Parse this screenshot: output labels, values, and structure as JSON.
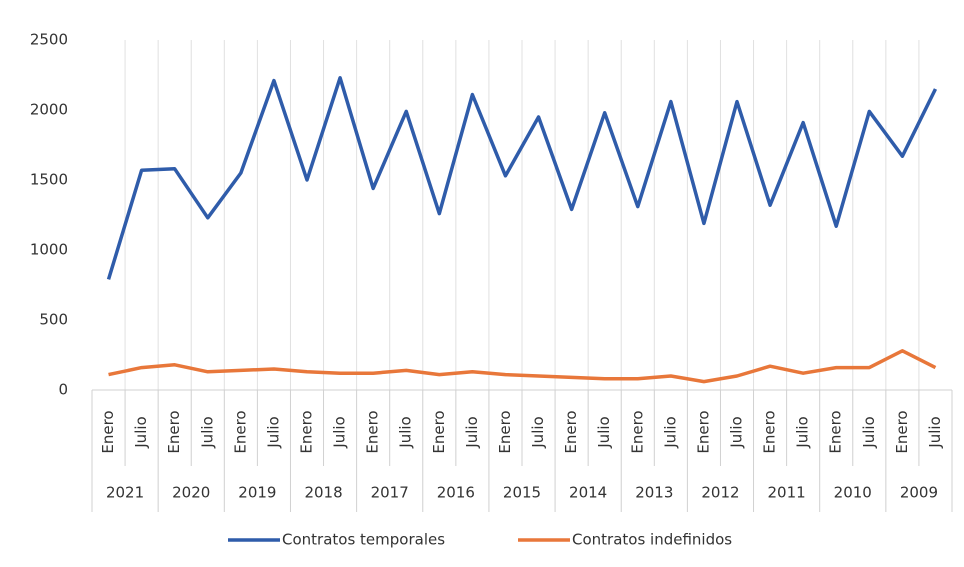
{
  "chart_data": {
    "type": "line",
    "categories": [
      "Enero",
      "Julio",
      "Enero",
      "Julio",
      "Enero",
      "Julio",
      "Enero",
      "Julio",
      "Enero",
      "Julio",
      "Enero",
      "Julio",
      "Enero",
      "Julio",
      "Enero",
      "Julio",
      "Enero",
      "Julio",
      "Enero",
      "Julio",
      "Enero",
      "Julio",
      "Enero",
      "Julio",
      "Enero",
      "Julio"
    ],
    "groups": [
      "2021",
      "2020",
      "2019",
      "2018",
      "2017",
      "2016",
      "2015",
      "2014",
      "2013",
      "2012",
      "2011",
      "2010",
      "2009"
    ],
    "series": [
      {
        "name": "Contratos temporales",
        "color": "#2f5caa",
        "values": [
          790,
          1570,
          1580,
          1230,
          1550,
          2210,
          1500,
          2230,
          1440,
          1990,
          1260,
          2110,
          1530,
          1950,
          1290,
          1980,
          1310,
          2060,
          1190,
          2060,
          1320,
          1910,
          1170,
          1990,
          1670,
          2150
        ]
      },
      {
        "name": "Contratos indefinidos",
        "color": "#e8773a",
        "values": [
          110,
          160,
          180,
          130,
          140,
          150,
          130,
          120,
          120,
          140,
          110,
          130,
          110,
          100,
          90,
          80,
          80,
          100,
          60,
          100,
          170,
          120,
          160,
          160,
          280,
          160
        ]
      }
    ],
    "ylim": [
      0,
      2500
    ],
    "yticks": [
      0,
      500,
      1000,
      1500,
      2000,
      2500
    ],
    "grid": true,
    "legend": "bottom"
  }
}
